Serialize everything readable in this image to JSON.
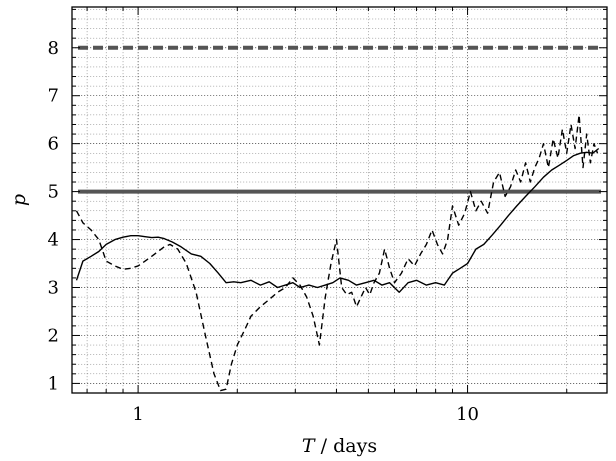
{
  "chart_data": {
    "type": "line",
    "xscale": "log",
    "xlim": [
      0.63,
      26.5
    ],
    "ylim": [
      0.8,
      8.85
    ],
    "grid": true,
    "xlabel_var": "T",
    "xlabel_sep": " / ",
    "xlabel_unit": "days",
    "ylabel": "p",
    "x_ticks_major": [
      1,
      10
    ],
    "x_tick_labels": [
      "1",
      "10"
    ],
    "y_ticks_major": [
      1,
      2,
      3,
      4,
      5,
      6,
      7,
      8
    ],
    "y_tick_labels": [
      "1",
      "2",
      "3",
      "4",
      "5",
      "6",
      "7",
      "8"
    ],
    "reference_lines": [
      {
        "y": 8.0,
        "style": "dashed",
        "color": "#555555"
      },
      {
        "y": 5.0,
        "style": "solid",
        "color": "#555555"
      }
    ],
    "series": [
      {
        "style": "solid",
        "color": "#000000",
        "x": [
          0.65,
          0.68,
          0.72,
          0.76,
          0.8,
          0.85,
          0.9,
          0.95,
          1.0,
          1.05,
          1.1,
          1.15,
          1.2,
          1.27,
          1.35,
          1.45,
          1.55,
          1.65,
          1.75,
          1.85,
          1.95,
          2.05,
          2.2,
          2.35,
          2.5,
          2.65,
          2.8,
          2.95,
          3.1,
          3.3,
          3.5,
          3.7,
          3.9,
          4.1,
          4.35,
          4.6,
          4.9,
          5.2,
          5.5,
          5.8,
          6.2,
          6.6,
          7.0,
          7.5,
          8.0,
          8.5,
          9.0,
          9.5,
          10.0,
          10.6,
          11.2,
          11.9,
          12.6,
          13.3,
          14.1,
          15.0,
          16.0,
          17.0,
          18.0,
          19.0,
          20.0,
          21.0,
          22.0,
          23.0,
          24.0,
          25.0
        ],
        "y": [
          3.15,
          3.55,
          3.65,
          3.75,
          3.9,
          4.0,
          4.05,
          4.08,
          4.08,
          4.06,
          4.04,
          4.05,
          4.02,
          3.95,
          3.85,
          3.7,
          3.65,
          3.5,
          3.3,
          3.1,
          3.12,
          3.1,
          3.15,
          3.05,
          3.12,
          3.0,
          3.05,
          3.1,
          3.0,
          3.05,
          3.0,
          3.05,
          3.1,
          3.2,
          3.15,
          3.05,
          3.1,
          3.15,
          3.05,
          3.1,
          2.9,
          3.1,
          3.15,
          3.05,
          3.1,
          3.05,
          3.3,
          3.4,
          3.5,
          3.8,
          3.9,
          4.1,
          4.3,
          4.5,
          4.7,
          4.9,
          5.1,
          5.3,
          5.45,
          5.55,
          5.65,
          5.75,
          5.8,
          5.82,
          5.8,
          5.9
        ]
      },
      {
        "style": "dashed",
        "color": "#000000",
        "x": [
          0.65,
          0.68,
          0.72,
          0.76,
          0.8,
          0.85,
          0.9,
          0.95,
          1.0,
          1.05,
          1.1,
          1.15,
          1.2,
          1.25,
          1.32,
          1.4,
          1.5,
          1.6,
          1.7,
          1.78,
          1.85,
          1.92,
          2.0,
          2.1,
          2.2,
          2.35,
          2.5,
          2.65,
          2.8,
          2.95,
          3.1,
          3.25,
          3.4,
          3.55,
          3.7,
          3.85,
          4.0,
          4.15,
          4.3,
          4.45,
          4.6,
          4.75,
          4.9,
          5.05,
          5.2,
          5.4,
          5.6,
          5.8,
          6.0,
          6.3,
          6.6,
          6.9,
          7.2,
          7.5,
          7.8,
          8.1,
          8.4,
          8.7,
          9.0,
          9.4,
          9.8,
          10.2,
          10.6,
          11.0,
          11.5,
          12.0,
          12.5,
          13.0,
          13.5,
          14.0,
          14.5,
          15.0,
          15.5,
          16.0,
          16.5,
          17.0,
          17.6,
          18.2,
          18.8,
          19.4,
          20.0,
          20.6,
          21.2,
          21.8,
          22.4,
          23.0,
          23.6,
          24.2,
          24.8
        ],
        "y": [
          4.6,
          4.35,
          4.2,
          4.0,
          3.55,
          3.45,
          3.38,
          3.4,
          3.45,
          3.55,
          3.65,
          3.75,
          3.85,
          3.9,
          3.8,
          3.5,
          2.9,
          2.0,
          1.2,
          0.85,
          0.88,
          1.4,
          1.8,
          2.1,
          2.4,
          2.6,
          2.75,
          2.9,
          3.0,
          3.2,
          3.05,
          2.8,
          2.4,
          1.8,
          2.8,
          3.5,
          4.0,
          3.0,
          2.85,
          2.9,
          2.6,
          2.8,
          3.0,
          2.85,
          3.1,
          3.3,
          3.8,
          3.4,
          3.1,
          3.3,
          3.6,
          3.45,
          3.7,
          3.9,
          4.2,
          3.9,
          3.7,
          4.0,
          4.7,
          4.3,
          4.55,
          5.0,
          4.6,
          4.8,
          4.55,
          5.2,
          5.4,
          4.9,
          5.1,
          5.45,
          5.2,
          5.6,
          5.2,
          5.5,
          5.7,
          6.0,
          5.5,
          6.1,
          5.7,
          6.3,
          5.8,
          6.4,
          5.9,
          6.6,
          5.5,
          6.2,
          5.6,
          6.0,
          5.8
        ]
      }
    ]
  }
}
